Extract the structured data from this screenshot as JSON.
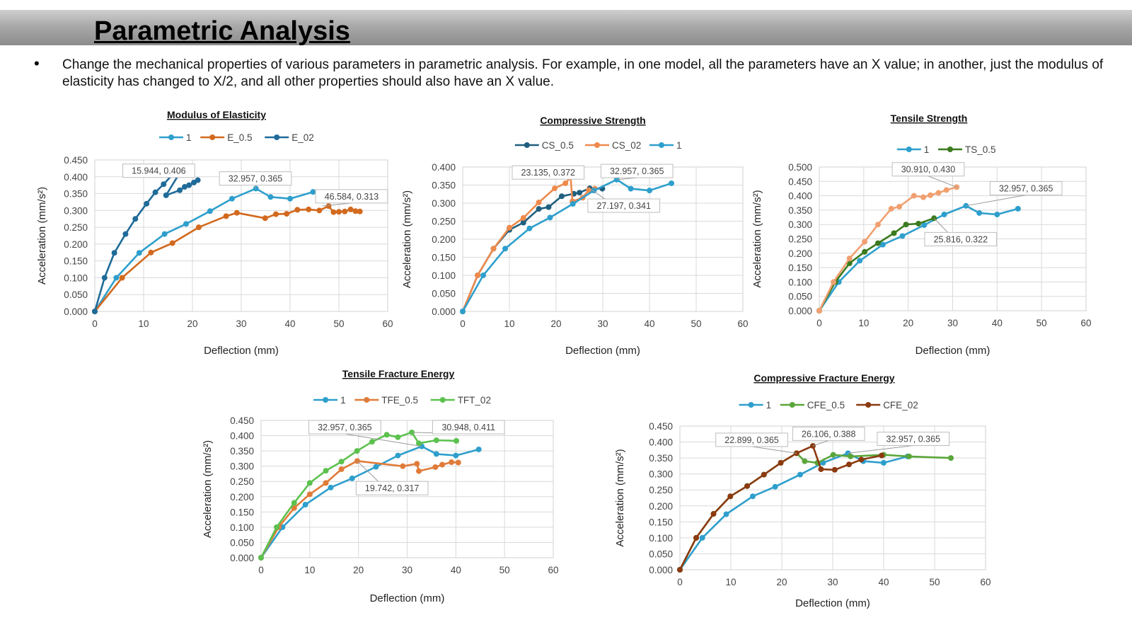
{
  "header": {
    "title": "Parametric Analysis"
  },
  "bullet": {
    "text": "Change the mechanical properties of various parameters in parametric analysis. For example, in one model, all the parameters have an X value; in another, just the modulus of elasticity has changed to X/2, and all other properties should also have an X value."
  },
  "chart_data": [
    {
      "id": "elastic",
      "type": "line",
      "title": "Modulus of Elasticity",
      "xlabel": "Deflection (mm)",
      "ylabel": "Acceleration (mm/s²)",
      "xlim": [
        0,
        60
      ],
      "ylim": [
        0,
        0.45
      ],
      "xstep": 10,
      "ystep": 0.05,
      "ydecimals": 3,
      "grid": true,
      "legend_position": "top",
      "series": [
        {
          "name": "1",
          "color": "#2E9FCC",
          "points": [
            [
              0,
              0
            ],
            [
              4.4,
              0.1
            ],
            [
              9.1,
              0.174
            ],
            [
              14.3,
              0.23
            ],
            [
              18.7,
              0.26
            ],
            [
              23.6,
              0.298
            ],
            [
              28.1,
              0.335
            ],
            [
              33,
              0.365
            ],
            [
              36,
              0.34
            ],
            [
              40,
              0.335
            ],
            [
              44.7,
              0.355
            ]
          ]
        },
        {
          "name": "E_0.5",
          "color": "#D2691E",
          "points": [
            [
              0,
              0
            ],
            [
              5.6,
              0.1
            ],
            [
              11.5,
              0.175
            ],
            [
              15.9,
              0.203
            ],
            [
              21.3,
              0.25
            ],
            [
              26.9,
              0.283
            ],
            [
              29.1,
              0.293
            ],
            [
              34.9,
              0.277
            ],
            [
              37.1,
              0.289
            ],
            [
              39.3,
              0.29
            ],
            [
              41.5,
              0.302
            ],
            [
              43.8,
              0.303
            ],
            [
              46,
              0.3
            ],
            [
              47.9,
              0.313
            ],
            [
              48.9,
              0.295
            ],
            [
              50,
              0.296
            ],
            [
              51.2,
              0.297
            ],
            [
              52.4,
              0.303
            ],
            [
              53.4,
              0.298
            ],
            [
              54.3,
              0.297
            ]
          ]
        },
        {
          "name": "E_02",
          "color": "#1F6B99",
          "points": [
            [
              0,
              0
            ],
            [
              2,
              0.1
            ],
            [
              4,
              0.174
            ],
            [
              6.3,
              0.23
            ],
            [
              8.3,
              0.275
            ],
            [
              10.6,
              0.32
            ],
            [
              12.4,
              0.354
            ],
            [
              14.1,
              0.378
            ],
            [
              15.9,
              0.406
            ],
            [
              17.4,
              0.412
            ],
            [
              14.6,
              0.345
            ],
            [
              17.4,
              0.36
            ],
            [
              18.4,
              0.37
            ],
            [
              19.3,
              0.375
            ],
            [
              20.3,
              0.383
            ],
            [
              21.1,
              0.39
            ]
          ]
        }
      ],
      "annotations": [
        {
          "label": "15.944, 0.406",
          "x": 15.944,
          "y": 0.406,
          "bx": 13.1,
          "by": 0.418
        },
        {
          "label": "32.957, 0.365",
          "x": 32.957,
          "y": 0.365,
          "bx": 32.9,
          "by": 0.395
        },
        {
          "label": "46.584, 0.313",
          "x": 46.584,
          "y": 0.313,
          "bx": 52.6,
          "by": 0.342
        }
      ]
    },
    {
      "id": "compressive",
      "type": "line",
      "title": "Compressive Strength",
      "xlabel": "Deflection (mm)",
      "ylabel": "Acceleration (mm/s²)",
      "xlim": [
        0,
        60
      ],
      "ylim": [
        0,
        0.4
      ],
      "xstep": 10,
      "ystep": 0.05,
      "ydecimals": 3,
      "grid": true,
      "legend_position": "top",
      "series": [
        {
          "name": "CS_0.5",
          "color": "#1F5F7F",
          "points": [
            [
              0,
              0
            ],
            [
              3.2,
              0.1
            ],
            [
              6.6,
              0.174
            ],
            [
              10,
              0.226
            ],
            [
              13,
              0.246
            ],
            [
              16.3,
              0.284
            ],
            [
              18.4,
              0.289
            ],
            [
              21.2,
              0.319
            ],
            [
              23.8,
              0.326
            ],
            [
              25,
              0.329
            ],
            [
              27.2,
              0.341
            ],
            [
              29.9,
              0.34
            ]
          ]
        },
        {
          "name": "CS_02",
          "color": "#EE8A4C",
          "points": [
            [
              0,
              0
            ],
            [
              3.2,
              0.1
            ],
            [
              6.6,
              0.174
            ],
            [
              10,
              0.232
            ],
            [
              13,
              0.259
            ],
            [
              16.3,
              0.302
            ],
            [
              19.7,
              0.341
            ],
            [
              22,
              0.355
            ],
            [
              23.1,
              0.372
            ],
            [
              23.5,
              0.305
            ],
            [
              25.7,
              0.315
            ],
            [
              27,
              0.336
            ],
            [
              28.3,
              0.34
            ]
          ]
        },
        {
          "name": "1",
          "color": "#2E9FCC",
          "points": [
            [
              0,
              0
            ],
            [
              4.4,
              0.1
            ],
            [
              9.1,
              0.174
            ],
            [
              14.3,
              0.23
            ],
            [
              18.7,
              0.26
            ],
            [
              23.6,
              0.298
            ],
            [
              28.1,
              0.335
            ],
            [
              33,
              0.365
            ],
            [
              36,
              0.34
            ],
            [
              40,
              0.335
            ],
            [
              44.7,
              0.355
            ]
          ]
        }
      ],
      "annotations": [
        {
          "label": "23.135, 0.372",
          "x": 23.135,
          "y": 0.372,
          "bx": 18.3,
          "by": 0.385
        },
        {
          "label": "32.957, 0.365",
          "x": 32.957,
          "y": 0.365,
          "bx": 37.3,
          "by": 0.389
        },
        {
          "label": "27.197, 0.341",
          "x": 27.197,
          "y": 0.341,
          "bx": 34.5,
          "by": 0.293
        }
      ]
    },
    {
      "id": "tensile",
      "type": "line",
      "title": "Tensile Strength",
      "xlabel": "Deflection (mm)",
      "ylabel": "Acceleration (mm/s²)",
      "xlim": [
        0,
        60
      ],
      "ylim": [
        0,
        0.5
      ],
      "xstep": 10,
      "ystep": 0.05,
      "ydecimals": 3,
      "grid": true,
      "legend_position": "top",
      "series": [
        {
          "name": "1",
          "color": "#2E9FCC",
          "points": [
            [
              0,
              0
            ],
            [
              4.4,
              0.1
            ],
            [
              9.1,
              0.174
            ],
            [
              14.3,
              0.23
            ],
            [
              18.7,
              0.26
            ],
            [
              23.6,
              0.298
            ],
            [
              28.1,
              0.335
            ],
            [
              33,
              0.365
            ],
            [
              36,
              0.34
            ],
            [
              40,
              0.335
            ],
            [
              44.7,
              0.355
            ]
          ]
        },
        {
          "name": "TS_0.5",
          "color": "#3B7A1E",
          "points": [
            [
              0,
              0
            ],
            [
              3.6,
              0.1
            ],
            [
              6.8,
              0.165
            ],
            [
              10.2,
              0.205
            ],
            [
              13.2,
              0.235
            ],
            [
              16.8,
              0.27
            ],
            [
              19.5,
              0.3
            ],
            [
              22.3,
              0.303
            ],
            [
              25.816,
              0.322
            ]
          ]
        },
        {
          "name": "",
          "color": "#F0A070",
          "points": [
            [
              0,
              0
            ],
            [
              3.2,
              0.1
            ],
            [
              6.8,
              0.182
            ],
            [
              10.2,
              0.24
            ],
            [
              13.2,
              0.3
            ],
            [
              16.2,
              0.355
            ],
            [
              18,
              0.362
            ],
            [
              21.3,
              0.4
            ],
            [
              23.4,
              0.395
            ],
            [
              25,
              0.402
            ],
            [
              26.8,
              0.41
            ],
            [
              28.6,
              0.42
            ],
            [
              30.9,
              0.43
            ]
          ]
        }
      ],
      "annotations": [
        {
          "label": "30.910, 0.430",
          "x": 30.91,
          "y": 0.43,
          "bx": 24.5,
          "by": 0.492
        },
        {
          "label": "32.957, 0.365",
          "x": 32.957,
          "y": 0.365,
          "bx": 46.5,
          "by": 0.426
        },
        {
          "label": "25.816, 0.322",
          "x": 25.816,
          "y": 0.322,
          "bx": 31.8,
          "by": 0.249
        }
      ]
    },
    {
      "id": "tfe",
      "type": "line",
      "title": "Tensile Fracture Energy",
      "xlabel": "Deflection (mm)",
      "ylabel": "Acceleration (mm/s²)",
      "xlim": [
        0,
        60
      ],
      "ylim": [
        0,
        0.45
      ],
      "xstep": 10,
      "ystep": 0.05,
      "ydecimals": 3,
      "grid": true,
      "legend_position": "top",
      "series": [
        {
          "name": "1",
          "color": "#2E9FCC",
          "points": [
            [
              0,
              0
            ],
            [
              4.4,
              0.1
            ],
            [
              9.1,
              0.174
            ],
            [
              14.3,
              0.23
            ],
            [
              18.7,
              0.26
            ],
            [
              23.6,
              0.298
            ],
            [
              28.1,
              0.335
            ],
            [
              33,
              0.365
            ],
            [
              36,
              0.34
            ],
            [
              40,
              0.335
            ],
            [
              44.7,
              0.355
            ]
          ]
        },
        {
          "name": "TFE_0.5",
          "color": "#E07B39",
          "points": [
            [
              0,
              0
            ],
            [
              3.6,
              0.1
            ],
            [
              6.8,
              0.163
            ],
            [
              10,
              0.208
            ],
            [
              13.3,
              0.245
            ],
            [
              16.5,
              0.29
            ],
            [
              19.742,
              0.317
            ],
            [
              29.1,
              0.3
            ],
            [
              32,
              0.308
            ],
            [
              32.4,
              0.284
            ],
            [
              35.8,
              0.297
            ],
            [
              37.2,
              0.305
            ],
            [
              39.1,
              0.313
            ],
            [
              40.5,
              0.312
            ]
          ]
        },
        {
          "name": "TFT_02",
          "color": "#5CC14E",
          "points": [
            [
              0,
              0
            ],
            [
              3.2,
              0.1
            ],
            [
              6.8,
              0.18
            ],
            [
              10,
              0.245
            ],
            [
              13.3,
              0.285
            ],
            [
              16.5,
              0.315
            ],
            [
              19.7,
              0.35
            ],
            [
              22.8,
              0.38
            ],
            [
              25.8,
              0.403
            ],
            [
              28.1,
              0.395
            ],
            [
              30.948,
              0.411
            ],
            [
              32.4,
              0.375
            ],
            [
              36,
              0.385
            ],
            [
              40.1,
              0.383
            ]
          ]
        }
      ],
      "annotations": [
        {
          "label": "32.957, 0.365",
          "x": 32.957,
          "y": 0.365,
          "bx": 17.2,
          "by": 0.428
        },
        {
          "label": "30.948, 0.411",
          "x": 30.948,
          "y": 0.411,
          "bx": 42.6,
          "by": 0.428
        },
        {
          "label": "19.742, 0.317",
          "x": 19.742,
          "y": 0.317,
          "bx": 26.9,
          "by": 0.228
        }
      ]
    },
    {
      "id": "cfe",
      "type": "line",
      "title": "Compressive Fracture Energy",
      "xlabel": "Deflection (mm)",
      "ylabel": "Acceleration (mm/s²)",
      "xlim": [
        0,
        60
      ],
      "ylim": [
        0,
        0.45
      ],
      "xstep": 10,
      "ystep": 0.05,
      "ydecimals": 3,
      "grid": true,
      "legend_position": "top",
      "series": [
        {
          "name": "1",
          "color": "#2E9FCC",
          "points": [
            [
              0,
              0
            ],
            [
              4.4,
              0.1
            ],
            [
              9.1,
              0.174
            ],
            [
              14.3,
              0.23
            ],
            [
              18.7,
              0.26
            ],
            [
              23.6,
              0.298
            ],
            [
              28.1,
              0.335
            ],
            [
              33,
              0.365
            ],
            [
              36,
              0.34
            ],
            [
              40,
              0.335
            ],
            [
              44.7,
              0.355
            ]
          ]
        },
        {
          "name": "CFE_0.5",
          "color": "#5AA63A",
          "points": [
            [
              0,
              0
            ],
            [
              3.2,
              0.1
            ],
            [
              6.6,
              0.175
            ],
            [
              9.9,
              0.23
            ],
            [
              13.2,
              0.262
            ],
            [
              16.5,
              0.298
            ],
            [
              19.8,
              0.335
            ],
            [
              22.899,
              0.365
            ],
            [
              24.5,
              0.34
            ],
            [
              27,
              0.335
            ],
            [
              30.1,
              0.36
            ],
            [
              33.5,
              0.355
            ],
            [
              40,
              0.36
            ],
            [
              45,
              0.355
            ],
            [
              53.2,
              0.35
            ]
          ]
        },
        {
          "name": "CFE_02",
          "color": "#8B3A10",
          "points": [
            [
              0,
              0
            ],
            [
              3.2,
              0.1
            ],
            [
              6.6,
              0.175
            ],
            [
              9.9,
              0.23
            ],
            [
              13.2,
              0.262
            ],
            [
              16.5,
              0.298
            ],
            [
              19.8,
              0.335
            ],
            [
              22.9,
              0.365
            ],
            [
              26.106,
              0.388
            ],
            [
              27.7,
              0.315
            ],
            [
              30.4,
              0.313
            ],
            [
              33.2,
              0.33
            ],
            [
              35.6,
              0.345
            ],
            [
              39.6,
              0.358
            ]
          ]
        }
      ],
      "annotations": [
        {
          "label": "22.899, 0.365",
          "x": 22.899,
          "y": 0.365,
          "bx": 14.1,
          "by": 0.407
        },
        {
          "label": "26.106, 0.388",
          "x": 26.106,
          "y": 0.388,
          "bx": 29.2,
          "by": 0.426
        },
        {
          "label": "32.957, 0.365",
          "x": 32.957,
          "y": 0.365,
          "bx": 45.8,
          "by": 0.41
        }
      ]
    }
  ]
}
